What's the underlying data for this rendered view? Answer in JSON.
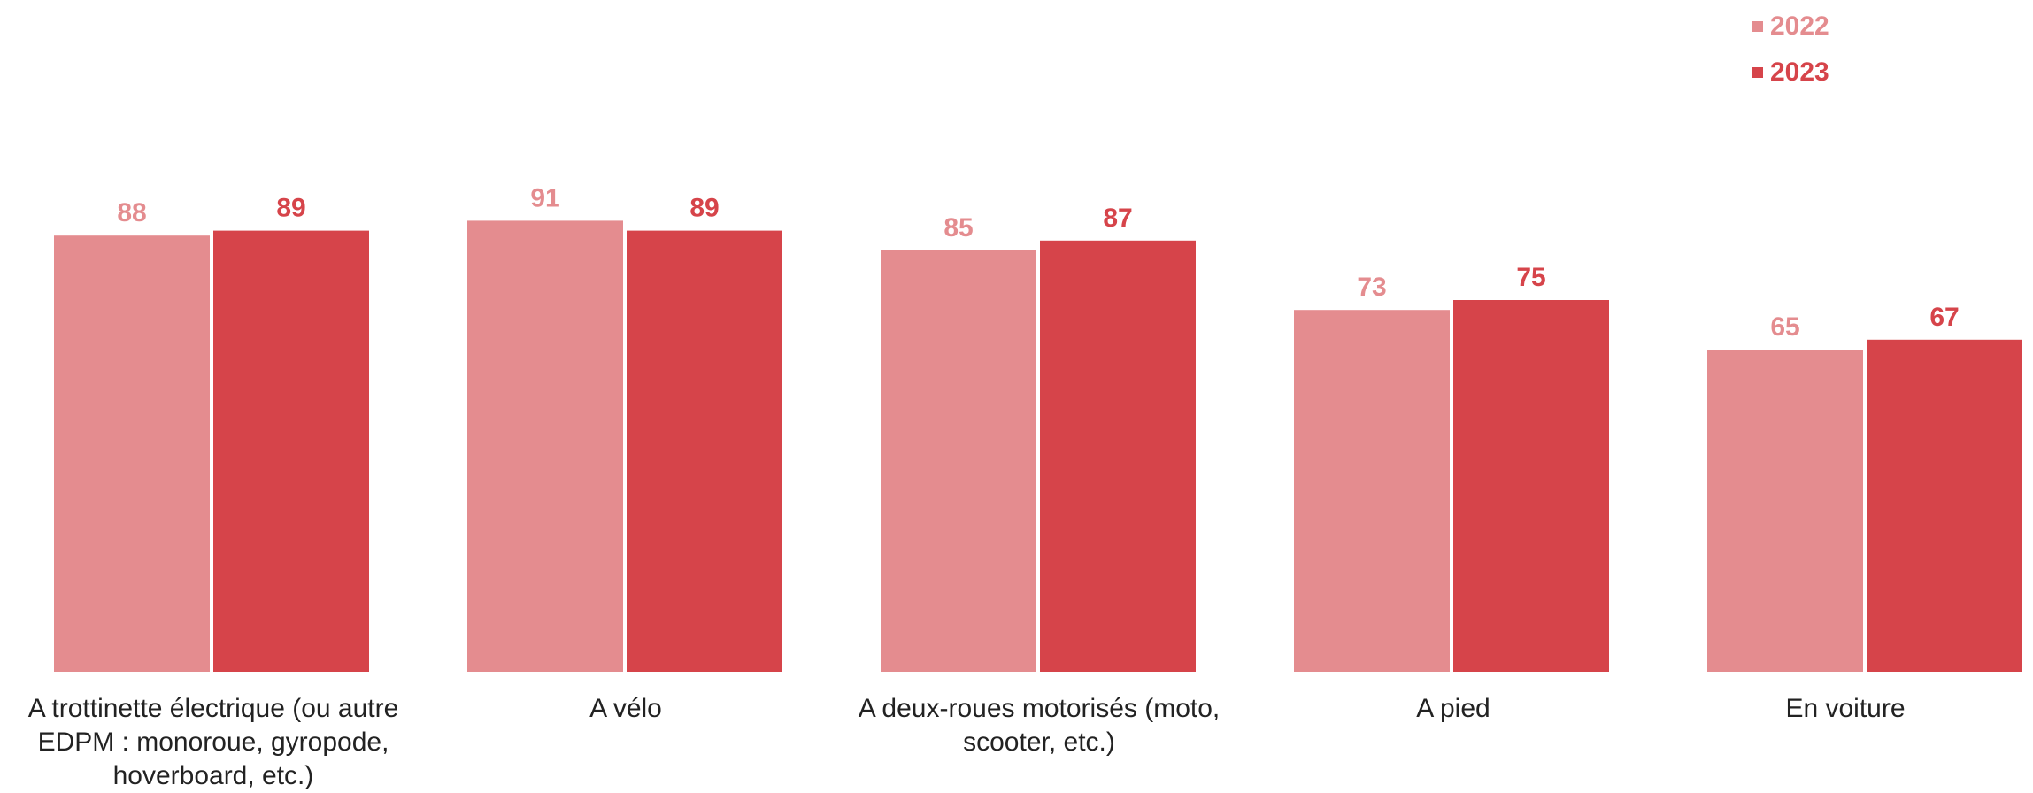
{
  "legend": {
    "items": [
      "2022",
      "2023"
    ]
  },
  "colors": {
    "2022": "#e48c8f",
    "2023": "#d6444a"
  },
  "chart_data": {
    "type": "bar",
    "categories": [
      "A trottinette électrique (ou autre EDPM : monoroue, gyropode, hoverboard, etc.)",
      "A vélo",
      "A deux-roues motorisés (moto, scooter, etc.)",
      "A pied",
      "En voiture"
    ],
    "series": [
      {
        "name": "2022",
        "values": [
          88,
          91,
          85,
          73,
          65
        ]
      },
      {
        "name": "2023",
        "values": [
          89,
          89,
          87,
          75,
          67
        ]
      }
    ],
    "ylim": [
      0,
      100
    ],
    "grid": false,
    "legend_position": "top-right",
    "title": "",
    "xlabel": "",
    "ylabel": ""
  }
}
